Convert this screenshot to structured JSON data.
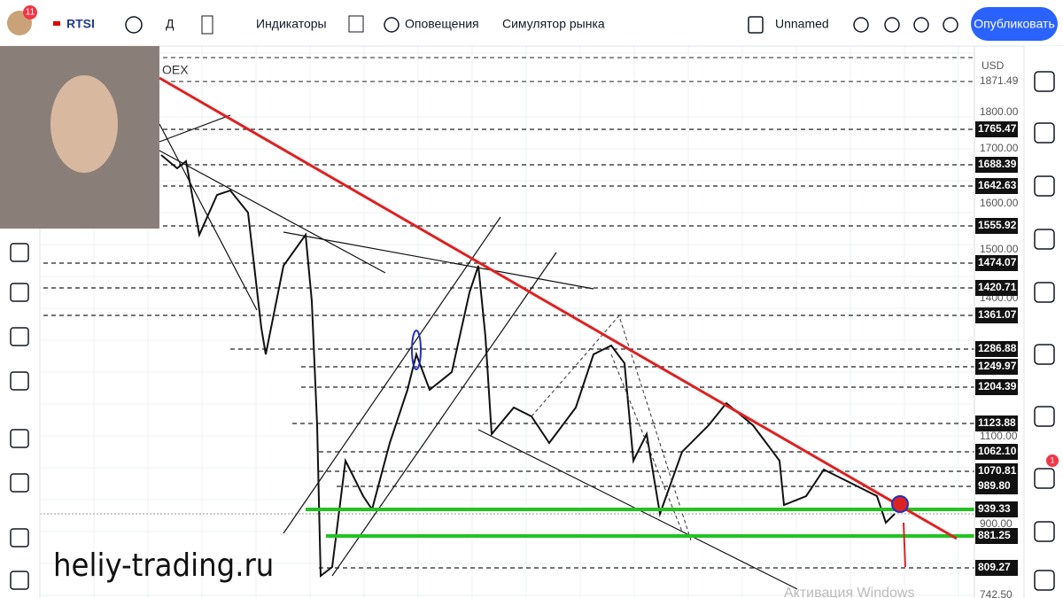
{
  "toolbar": {
    "badge": "11",
    "symbol": "RTSI",
    "interval": "Д",
    "indicators": "Индикаторы",
    "alerts": "Оповещения",
    "replay": "Симулятор рынка",
    "layout": "Unnamed",
    "publish": "Опубликовать"
  },
  "chart": {
    "legend": "OEX",
    "currency": "USD",
    "watermark": "heliy-trading.ru",
    "activation": "Активация Windows",
    "price_scale": [
      "1871.49",
      "1800.00",
      "1700.00",
      "1600.00",
      "1500.00",
      "1400.00",
      "1100.00",
      "900.00",
      "742.50"
    ],
    "level_labels": [
      "1765.47",
      "1688.39",
      "1642.63",
      "1555.92",
      "1474.07",
      "1420.71",
      "1361.07",
      "1286.88",
      "1249.97",
      "1204.39",
      "1123.88",
      "1062.10",
      "1070.81",
      "989.80",
      "939.33",
      "881.25",
      "809.27"
    ]
  },
  "sidebar": {
    "notification_badge": "1"
  }
}
